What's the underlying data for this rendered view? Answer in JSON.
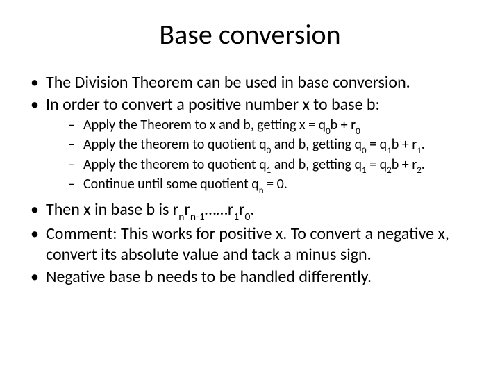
{
  "background_color": "#ffffff",
  "text_color": "#000000",
  "font_family": "Calibri, Arial, sans-serif",
  "title": {
    "text": "Base conversion",
    "fontsize": 40,
    "align": "center"
  },
  "bullets": [
    {
      "level": 0,
      "text": "The Division Theorem can be used in base conversion."
    },
    {
      "level": 0,
      "text": "In order to convert a positive number x to base b:"
    },
    {
      "level": 1,
      "text_html": "Apply the Theorem to x and b, getting x = q<sub>0</sub>b + r<sub>0</sub>"
    },
    {
      "level": 1,
      "text_html": "Apply the theorem to quotient q<sub>0</sub> and b, getting q<sub>0</sub> = q<sub>1</sub>b + r<sub>1</sub>."
    },
    {
      "level": 1,
      "text_html": "Apply the theorem to quotient q<sub>1</sub> and b, getting q<sub>1</sub> = q<sub>2</sub>b + r<sub>2</sub>."
    },
    {
      "level": 1,
      "text_html": "Continue until some quotient q<sub>n</sub> = 0."
    },
    {
      "level": 0,
      "text_html": "Then x in base b is r<sub>n</sub>r<sub>n-1</sub>……r<sub>1</sub>r<sub>0</sub>."
    },
    {
      "level": 0,
      "text": "Comment: This works for positive x. To convert a negative x, convert its absolute value and tack a minus sign."
    },
    {
      "level": 0,
      "text": "Negative base b needs to be handled differently."
    }
  ],
  "fontsize_outer": 24,
  "fontsize_inner": 20
}
